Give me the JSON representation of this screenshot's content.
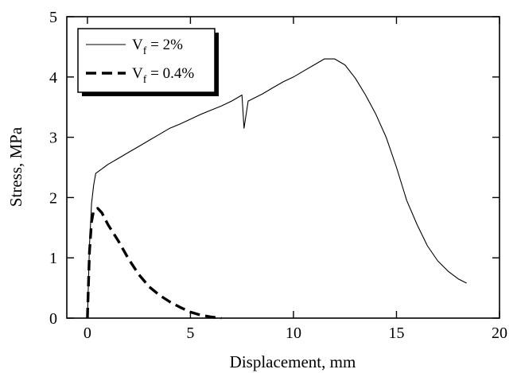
{
  "chart_data": {
    "type": "line",
    "title": "",
    "xlabel": "Displacement, mm",
    "ylabel": "Stress, MPa",
    "xlim": [
      -1,
      20
    ],
    "ylim": [
      0,
      5
    ],
    "xticks": [
      0,
      5,
      10,
      15,
      20
    ],
    "yticks": [
      0,
      1,
      2,
      3,
      4,
      5
    ],
    "grid": false,
    "legend_position": "top-left",
    "series": [
      {
        "name": "Vf = 2%",
        "legend_main": "V",
        "legend_sub": "f",
        "legend_rest": " = 2%",
        "style": "solid",
        "x": [
          0.0,
          0.1,
          0.2,
          0.3,
          0.4,
          0.6,
          0.8,
          1.0,
          1.5,
          2.0,
          2.5,
          3.0,
          3.5,
          4.0,
          4.5,
          5.0,
          5.5,
          6.0,
          6.5,
          7.0,
          7.5,
          7.6,
          7.8,
          8.5,
          9.0,
          9.5,
          10.0,
          10.5,
          11.0,
          11.5,
          12.0,
          12.5,
          13.0,
          13.5,
          14.0,
          14.5,
          15.0,
          15.5,
          16.0,
          16.5,
          17.0,
          17.5,
          18.0,
          18.4
        ],
        "y": [
          0.0,
          1.2,
          1.9,
          2.2,
          2.4,
          2.45,
          2.5,
          2.55,
          2.65,
          2.75,
          2.85,
          2.95,
          3.05,
          3.15,
          3.22,
          3.3,
          3.38,
          3.45,
          3.52,
          3.6,
          3.7,
          3.15,
          3.6,
          3.72,
          3.82,
          3.92,
          4.0,
          4.1,
          4.2,
          4.3,
          4.3,
          4.2,
          3.98,
          3.7,
          3.38,
          3.0,
          2.5,
          1.95,
          1.55,
          1.2,
          0.95,
          0.78,
          0.65,
          0.58
        ]
      },
      {
        "name": "Vf = 0.4%",
        "legend_main": "V",
        "legend_sub": "f",
        "legend_rest": " = 0.4%",
        "style": "dashed",
        "x": [
          0.0,
          0.1,
          0.2,
          0.3,
          0.5,
          0.7,
          1.0,
          1.5,
          2.0,
          2.5,
          3.0,
          3.5,
          4.0,
          4.5,
          5.0,
          5.5,
          6.0,
          6.5
        ],
        "y": [
          0.0,
          1.1,
          1.6,
          1.78,
          1.82,
          1.75,
          1.55,
          1.28,
          0.98,
          0.72,
          0.52,
          0.38,
          0.27,
          0.18,
          0.1,
          0.05,
          0.02,
          0.0
        ]
      }
    ]
  }
}
